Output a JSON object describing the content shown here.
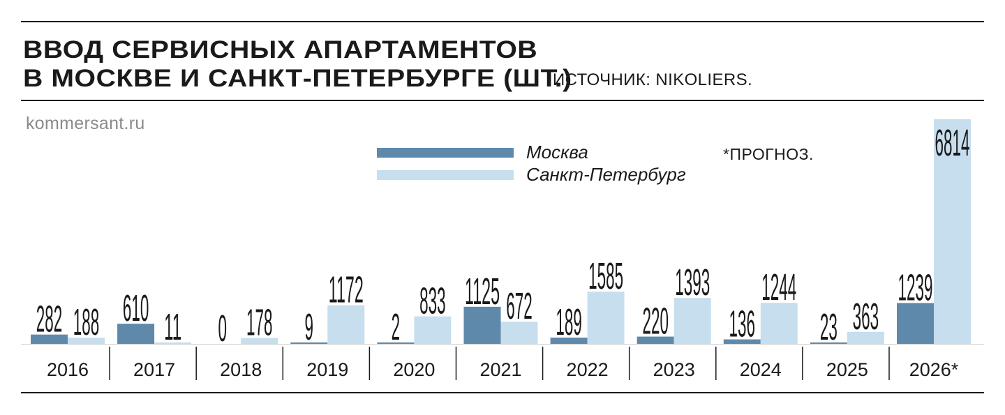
{
  "header": {
    "title_line1": "ВВОД СЕРВИСНЫХ АПАРТАМЕНТОВ",
    "title_line2": "В МОСКВЕ И САНКТ-ПЕТЕРБУРГЕ (ШТ.)",
    "source": "ИСТОЧНИК: NIKOLIERS.",
    "site": "kommersant.ru",
    "note": "*ПРОГНОЗ."
  },
  "colors": {
    "moscow": "#5e89ab",
    "spb": "#c6deee",
    "rule": "#1a1a1a"
  },
  "chart_data": {
    "type": "bar",
    "categories": [
      "2016",
      "2017",
      "2018",
      "2019",
      "2020",
      "2021",
      "2022",
      "2023",
      "2024",
      "2025",
      "2026*"
    ],
    "series": [
      {
        "name": "Москва",
        "values": [
          282,
          610,
          0,
          9,
          2,
          1125,
          189,
          220,
          136,
          23,
          1239
        ]
      },
      {
        "name": "Санкт-Петербург",
        "values": [
          188,
          11,
          178,
          1172,
          833,
          672,
          1585,
          1393,
          1244,
          363,
          6814
        ]
      }
    ],
    "ylim": [
      0,
      6814
    ],
    "grid": false,
    "legend_position": "top-center"
  }
}
